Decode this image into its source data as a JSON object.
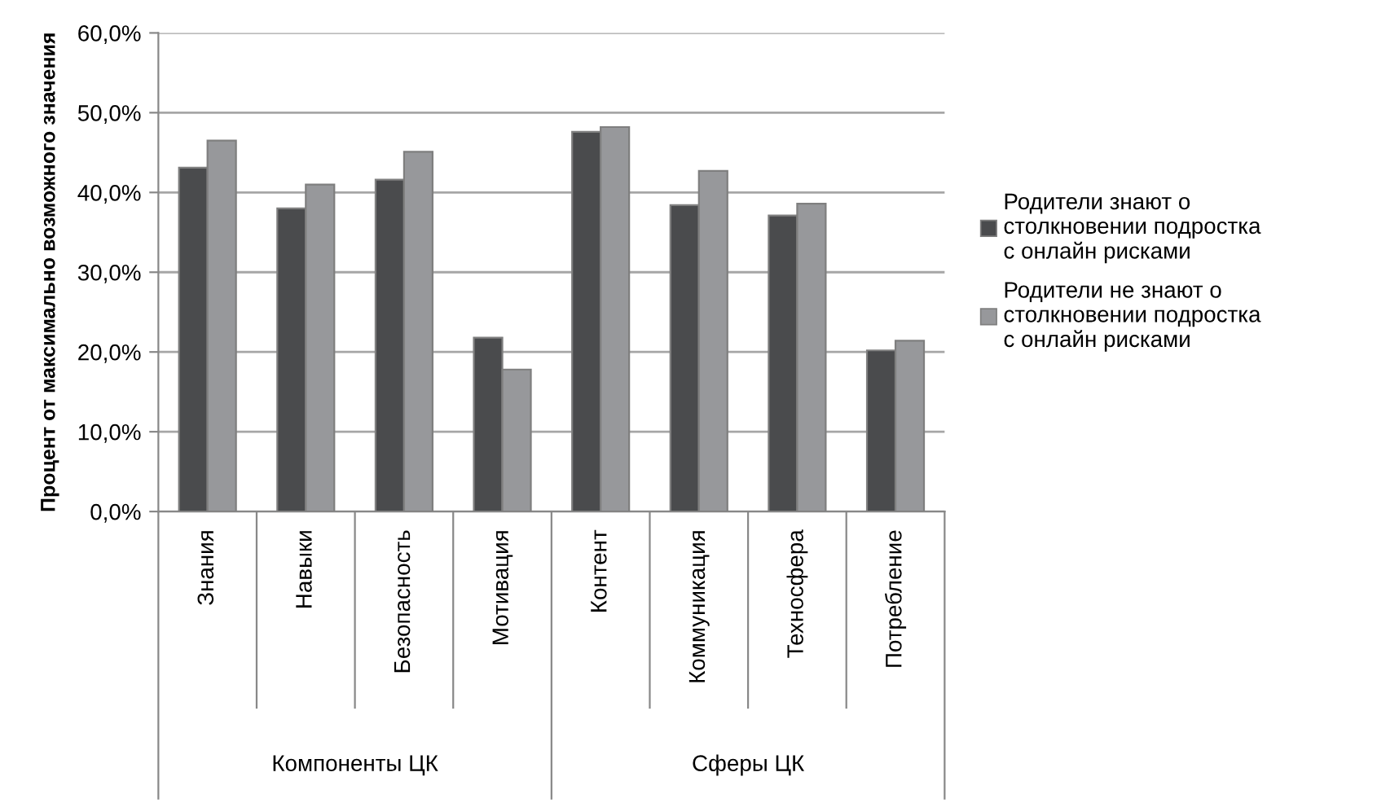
{
  "chart_data": {
    "type": "bar",
    "ylabel": "Процент от максимально возможного значения",
    "categories": [
      "Знания",
      "Навыки",
      "Безопасность",
      "Мотивация",
      "Контент",
      "Коммуникация",
      "Техносфера",
      "Потребление"
    ],
    "series": [
      {
        "name": "Родители знают о\nстолкновении подростка\nс онлайн рисками",
        "color": "#4a4b4d",
        "values": [
          43.1,
          38.0,
          41.6,
          21.8,
          47.6,
          38.4,
          37.1,
          20.2
        ]
      },
      {
        "name": "Родители не знают о\nстолкновении подростка\nс онлайн рисками",
        "color": "#97989b",
        "values": [
          46.5,
          41.0,
          45.1,
          17.8,
          48.2,
          42.7,
          38.6,
          21.4
        ]
      }
    ],
    "ylim": [
      0,
      60
    ],
    "yticks": [
      {
        "value": 0,
        "label": "0,0%"
      },
      {
        "value": 10,
        "label": "10,0%"
      },
      {
        "value": 20,
        "label": "20,0%"
      },
      {
        "value": 30,
        "label": "30,0%"
      },
      {
        "value": 40,
        "label": "40,0%"
      },
      {
        "value": 50,
        "label": "50,0%"
      },
      {
        "value": 60,
        "label": "60,0%"
      }
    ],
    "annotations": [
      "Компоненты ЦК",
      "Сферы ЦК"
    ],
    "grid": "y",
    "legend": "right"
  }
}
